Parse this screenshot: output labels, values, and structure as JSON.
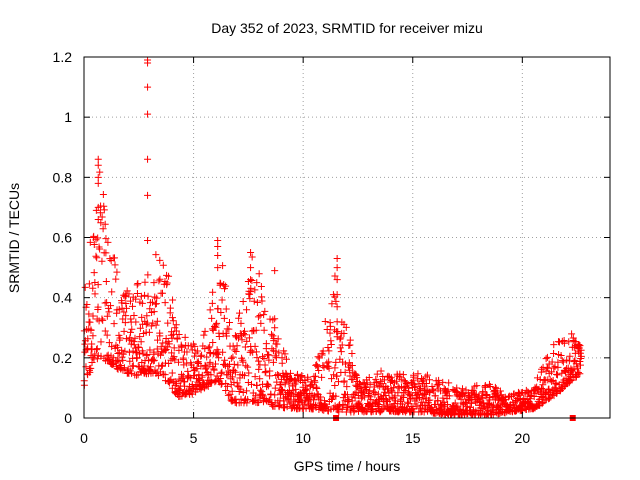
{
  "chart_data": {
    "type": "scatter",
    "title": "Day 352 of 2023, SRMTID for receiver mizu",
    "xlabel": "GPS time / hours",
    "ylabel": "SRMTID / TECUs",
    "xlim": [
      0,
      24
    ],
    "ylim": [
      0,
      1.2
    ],
    "grid": true,
    "xticks": [
      0,
      5,
      10,
      15,
      20
    ],
    "xtick_labels": [
      "0",
      "5",
      "10",
      "15",
      "20"
    ],
    "yticks": [
      0,
      0.2,
      0.4,
      0.6,
      0.8,
      1.0,
      1.2
    ],
    "ytick_labels": [
      "0",
      "0.2",
      "0.4",
      "0.6",
      "0.8",
      "1",
      "1.2"
    ],
    "marker": "+",
    "color": "#ff0000",
    "envelope": [
      {
        "x": 0.0,
        "low": 0.1,
        "high": 0.45
      },
      {
        "x": 0.3,
        "low": 0.15,
        "high": 0.6
      },
      {
        "x": 0.7,
        "low": 0.2,
        "high": 0.86
      },
      {
        "x": 1.2,
        "low": 0.18,
        "high": 0.6
      },
      {
        "x": 1.8,
        "low": 0.15,
        "high": 0.42
      },
      {
        "x": 2.5,
        "low": 0.14,
        "high": 0.45
      },
      {
        "x": 3.2,
        "low": 0.15,
        "high": 0.55
      },
      {
        "x": 3.8,
        "low": 0.12,
        "high": 0.5
      },
      {
        "x": 4.3,
        "low": 0.07,
        "high": 0.3
      },
      {
        "x": 5.0,
        "low": 0.08,
        "high": 0.25
      },
      {
        "x": 5.5,
        "low": 0.1,
        "high": 0.28
      },
      {
        "x": 6.2,
        "low": 0.12,
        "high": 0.58
      },
      {
        "x": 6.8,
        "low": 0.05,
        "high": 0.25
      },
      {
        "x": 7.7,
        "low": 0.05,
        "high": 0.55
      },
      {
        "x": 8.5,
        "low": 0.04,
        "high": 0.35
      },
      {
        "x": 9.5,
        "low": 0.03,
        "high": 0.15
      },
      {
        "x": 10.5,
        "low": 0.03,
        "high": 0.14
      },
      {
        "x": 11.5,
        "low": 0.02,
        "high": 0.53
      },
      {
        "x": 12.5,
        "low": 0.02,
        "high": 0.12
      },
      {
        "x": 13.5,
        "low": 0.02,
        "high": 0.16
      },
      {
        "x": 14.5,
        "low": 0.02,
        "high": 0.15
      },
      {
        "x": 15.5,
        "low": 0.02,
        "high": 0.15
      },
      {
        "x": 16.5,
        "low": 0.01,
        "high": 0.12
      },
      {
        "x": 17.5,
        "low": 0.01,
        "high": 0.1
      },
      {
        "x": 18.5,
        "low": 0.01,
        "high": 0.12
      },
      {
        "x": 19.5,
        "low": 0.02,
        "high": 0.08
      },
      {
        "x": 20.5,
        "low": 0.03,
        "high": 0.1
      },
      {
        "x": 21.2,
        "low": 0.06,
        "high": 0.22
      },
      {
        "x": 21.9,
        "low": 0.1,
        "high": 0.3
      },
      {
        "x": 22.7,
        "low": 0.15,
        "high": 0.28
      }
    ],
    "spikes": [
      {
        "x": 0.65,
        "values": [
          0.86,
          0.84,
          0.8,
          0.78,
          0.7,
          0.66
        ]
      },
      {
        "x": 2.9,
        "values": [
          1.19,
          1.18,
          1.1,
          1.01,
          0.86,
          0.74,
          0.59
        ]
      },
      {
        "x": 6.1,
        "values": [
          0.59,
          0.57,
          0.54,
          0.5
        ]
      },
      {
        "x": 7.6,
        "values": [
          0.55,
          0.5,
          0.46,
          0.42
        ]
      },
      {
        "x": 8.7,
        "values": [
          0.49,
          0.33,
          0.3
        ]
      },
      {
        "x": 11.55,
        "values": [
          0.53,
          0.5,
          0.46,
          0.41,
          0.37,
          0.32,
          0.27
        ]
      }
    ],
    "bottom_markers": [
      {
        "x": 11.5,
        "y": 0.0
      },
      {
        "x": 22.3,
        "y": 0.0
      }
    ]
  }
}
